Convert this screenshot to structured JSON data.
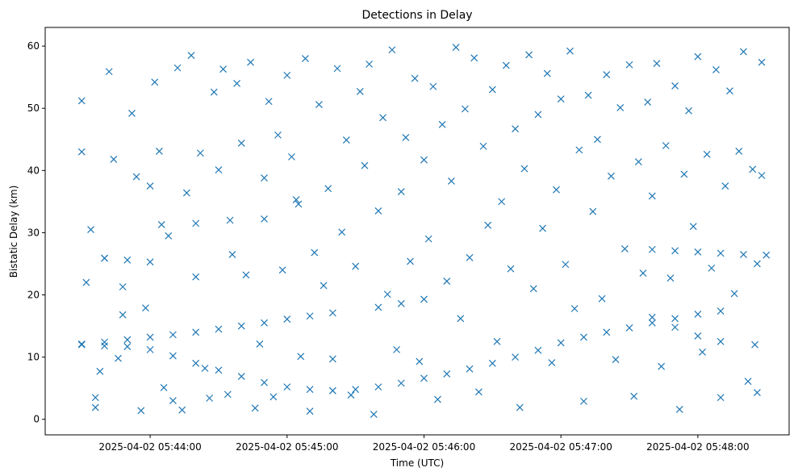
{
  "chart_data": {
    "type": "scatter",
    "title": "Detections in Delay",
    "xlabel": "Time (UTC)",
    "ylabel": "Bistatic Delay (km)",
    "marker": "x",
    "color": "#1f77b4",
    "grid": false,
    "x_ticks": [
      "2025-04-02 05:44:00",
      "2025-04-02 05:45:00",
      "2025-04-02 05:46:00",
      "2025-04-02 05:47:00",
      "2025-04-02 05:48:00"
    ],
    "y_ticks": [
      0,
      10,
      20,
      30,
      40,
      50,
      60
    ],
    "xlim": [
      "2025-04-02 05:43:14",
      "2025-04-02 05:48:40"
    ],
    "ylim": [
      -2.5,
      63
    ],
    "track_points": [
      [
        "05:43:30",
        12.1
      ],
      [
        "05:43:40",
        12.4
      ],
      [
        "05:43:50",
        12.8
      ],
      [
        "05:44:00",
        13.2
      ],
      [
        "05:44:10",
        13.6
      ],
      [
        "05:44:20",
        14.0
      ],
      [
        "05:44:30",
        14.5
      ],
      [
        "05:44:40",
        15.0
      ],
      [
        "05:44:50",
        15.5
      ],
      [
        "05:45:00",
        16.1
      ],
      [
        "05:45:10",
        16.6
      ],
      [
        "05:45:20",
        17.1
      ],
      [
        "05:45:40",
        18.0
      ],
      [
        "05:45:50",
        18.6
      ],
      [
        "05:46:00",
        19.3
      ],
      [
        "05:43:30",
        12.0
      ],
      [
        "05:43:40",
        11.8
      ],
      [
        "05:43:50",
        11.7
      ],
      [
        "05:44:00",
        11.2
      ],
      [
        "05:44:10",
        10.2
      ],
      [
        "05:44:20",
        9.0
      ],
      [
        "05:44:30",
        7.9
      ],
      [
        "05:44:40",
        6.9
      ],
      [
        "05:44:50",
        5.9
      ],
      [
        "05:45:00",
        5.2
      ],
      [
        "05:45:10",
        4.8
      ],
      [
        "05:45:20",
        4.6
      ],
      [
        "05:45:20",
        4.6
      ],
      [
        "05:45:30",
        4.8
      ],
      [
        "05:45:40",
        5.2
      ],
      [
        "05:45:50",
        5.8
      ],
      [
        "05:46:00",
        6.6
      ],
      [
        "05:46:10",
        7.3
      ],
      [
        "05:46:20",
        8.1
      ],
      [
        "05:46:30",
        9.0
      ],
      [
        "05:46:40",
        10.0
      ],
      [
        "05:46:50",
        11.1
      ],
      [
        "05:47:00",
        12.3
      ],
      [
        "05:47:10",
        13.2
      ],
      [
        "05:47:20",
        14.0
      ],
      [
        "05:47:30",
        14.7
      ],
      [
        "05:47:40",
        15.5
      ],
      [
        "05:47:50",
        16.2
      ],
      [
        "05:48:00",
        16.9
      ],
      [
        "05:48:10",
        17.4
      ],
      [
        "05:47:40",
        16.4
      ],
      [
        "05:47:50",
        14.8
      ],
      [
        "05:48:00",
        13.4
      ],
      [
        "05:48:10",
        12.5
      ],
      [
        "05:48:25",
        12.0
      ],
      [
        "05:47:40",
        27.3
      ],
      [
        "05:47:50",
        27.1
      ],
      [
        "05:48:00",
        26.9
      ],
      [
        "05:48:10",
        26.7
      ],
      [
        "05:48:20",
        26.5
      ],
      [
        "05:48:30",
        26.4
      ],
      [
        "05:43:40",
        25.9
      ],
      [
        "05:43:50",
        25.6
      ],
      [
        "05:44:00",
        25.3
      ],
      [
        "05:44:05",
        31.3
      ],
      [
        "05:44:20",
        31.5
      ],
      [
        "05:44:35",
        32.0
      ],
      [
        "05:44:50",
        32.2
      ],
      [
        "05:45:05",
        34.6
      ]
    ],
    "scatter_points": [
      [
        "05:43:30",
        51.2
      ],
      [
        "05:43:30",
        43.0
      ],
      [
        "05:43:32",
        22.0
      ],
      [
        "05:43:34",
        30.5
      ],
      [
        "05:43:36",
        3.5
      ],
      [
        "05:43:36",
        1.9
      ],
      [
        "05:43:38",
        7.7
      ],
      [
        "05:43:40",
        25.9
      ],
      [
        "05:43:42",
        55.9
      ],
      [
        "05:43:44",
        41.8
      ],
      [
        "05:43:46",
        9.8
      ],
      [
        "05:43:48",
        21.3
      ],
      [
        "05:43:48",
        16.8
      ],
      [
        "05:43:52",
        49.2
      ],
      [
        "05:43:54",
        39.0
      ],
      [
        "05:43:56",
        1.4
      ],
      [
        "05:43:58",
        17.9
      ],
      [
        "05:44:00",
        37.5
      ],
      [
        "05:44:02",
        54.2
      ],
      [
        "05:44:04",
        43.1
      ],
      [
        "05:44:06",
        5.1
      ],
      [
        "05:44:08",
        29.5
      ],
      [
        "05:44:10",
        3.0
      ],
      [
        "05:44:12",
        56.5
      ],
      [
        "05:44:14",
        1.5
      ],
      [
        "05:44:16",
        36.4
      ],
      [
        "05:44:18",
        58.5
      ],
      [
        "05:44:20",
        22.9
      ],
      [
        "05:44:22",
        42.8
      ],
      [
        "05:44:24",
        8.2
      ],
      [
        "05:44:26",
        3.4
      ],
      [
        "05:44:28",
        52.6
      ],
      [
        "05:44:30",
        40.1
      ],
      [
        "05:44:32",
        56.3
      ],
      [
        "05:44:34",
        4.0
      ],
      [
        "05:44:36",
        26.5
      ],
      [
        "05:44:38",
        54.0
      ],
      [
        "05:44:40",
        44.4
      ],
      [
        "05:44:42",
        23.2
      ],
      [
        "05:44:44",
        57.4
      ],
      [
        "05:44:46",
        1.8
      ],
      [
        "05:44:48",
        12.1
      ],
      [
        "05:44:50",
        38.8
      ],
      [
        "05:44:52",
        51.1
      ],
      [
        "05:44:54",
        3.6
      ],
      [
        "05:44:56",
        45.7
      ],
      [
        "05:44:58",
        24.0
      ],
      [
        "05:45:00",
        55.3
      ],
      [
        "05:45:02",
        42.2
      ],
      [
        "05:45:04",
        35.3
      ],
      [
        "05:45:06",
        10.1
      ],
      [
        "05:45:08",
        58.0
      ],
      [
        "05:45:10",
        1.3
      ],
      [
        "05:45:12",
        26.8
      ],
      [
        "05:45:14",
        50.6
      ],
      [
        "05:45:16",
        21.5
      ],
      [
        "05:45:18",
        37.1
      ],
      [
        "05:45:20",
        9.7
      ],
      [
        "05:45:22",
        56.4
      ],
      [
        "05:45:24",
        30.1
      ],
      [
        "05:45:26",
        44.9
      ],
      [
        "05:45:28",
        3.9
      ],
      [
        "05:45:30",
        24.6
      ],
      [
        "05:45:32",
        52.7
      ],
      [
        "05:45:34",
        40.8
      ],
      [
        "05:45:36",
        57.1
      ],
      [
        "05:45:38",
        0.8
      ],
      [
        "05:45:40",
        33.5
      ],
      [
        "05:45:42",
        48.5
      ],
      [
        "05:45:44",
        20.1
      ],
      [
        "05:45:46",
        59.4
      ],
      [
        "05:45:48",
        11.2
      ],
      [
        "05:45:50",
        36.6
      ],
      [
        "05:45:52",
        45.3
      ],
      [
        "05:45:54",
        25.4
      ],
      [
        "05:45:56",
        54.8
      ],
      [
        "05:45:58",
        9.3
      ],
      [
        "05:46:00",
        41.7
      ],
      [
        "05:46:02",
        29.0
      ],
      [
        "05:46:04",
        53.5
      ],
      [
        "05:46:06",
        3.2
      ],
      [
        "05:46:08",
        47.4
      ],
      [
        "05:46:10",
        22.2
      ],
      [
        "05:46:12",
        38.3
      ],
      [
        "05:46:14",
        59.8
      ],
      [
        "05:46:16",
        16.2
      ],
      [
        "05:46:18",
        49.9
      ],
      [
        "05:46:20",
        26.0
      ],
      [
        "05:46:22",
        58.1
      ],
      [
        "05:46:24",
        4.4
      ],
      [
        "05:46:26",
        43.9
      ],
      [
        "05:46:28",
        31.2
      ],
      [
        "05:46:30",
        53.0
      ],
      [
        "05:46:32",
        12.5
      ],
      [
        "05:46:34",
        35.0
      ],
      [
        "05:46:36",
        56.9
      ],
      [
        "05:46:38",
        24.2
      ],
      [
        "05:46:40",
        46.7
      ],
      [
        "05:46:42",
        1.9
      ],
      [
        "05:46:44",
        40.3
      ],
      [
        "05:46:46",
        58.6
      ],
      [
        "05:46:48",
        21.0
      ],
      [
        "05:46:50",
        49.0
      ],
      [
        "05:46:52",
        30.7
      ],
      [
        "05:46:54",
        55.6
      ],
      [
        "05:46:56",
        9.1
      ],
      [
        "05:46:58",
        36.9
      ],
      [
        "05:47:00",
        51.5
      ],
      [
        "05:47:02",
        24.9
      ],
      [
        "05:47:04",
        59.2
      ],
      [
        "05:47:06",
        17.8
      ],
      [
        "05:47:08",
        43.3
      ],
      [
        "05:47:10",
        2.9
      ],
      [
        "05:47:12",
        52.1
      ],
      [
        "05:47:14",
        33.4
      ],
      [
        "05:47:16",
        45.0
      ],
      [
        "05:47:18",
        19.4
      ],
      [
        "05:47:20",
        55.4
      ],
      [
        "05:47:22",
        39.1
      ],
      [
        "05:47:24",
        9.6
      ],
      [
        "05:47:26",
        50.1
      ],
      [
        "05:47:28",
        27.4
      ],
      [
        "05:47:30",
        57.0
      ],
      [
        "05:47:32",
        3.7
      ],
      [
        "05:47:34",
        41.4
      ],
      [
        "05:47:36",
        23.5
      ],
      [
        "05:47:38",
        51.0
      ],
      [
        "05:47:40",
        35.9
      ],
      [
        "05:47:42",
        57.2
      ],
      [
        "05:47:44",
        8.5
      ],
      [
        "05:47:46",
        44.0
      ],
      [
        "05:47:48",
        22.7
      ],
      [
        "05:47:50",
        53.6
      ],
      [
        "05:47:52",
        1.6
      ],
      [
        "05:47:54",
        39.4
      ],
      [
        "05:47:56",
        49.6
      ],
      [
        "05:47:58",
        31.0
      ],
      [
        "05:48:00",
        58.3
      ],
      [
        "05:48:02",
        10.8
      ],
      [
        "05:48:04",
        42.6
      ],
      [
        "05:48:06",
        24.3
      ],
      [
        "05:48:08",
        56.2
      ],
      [
        "05:48:10",
        3.5
      ],
      [
        "05:48:12",
        37.5
      ],
      [
        "05:48:14",
        52.8
      ],
      [
        "05:48:16",
        20.2
      ],
      [
        "05:48:18",
        43.1
      ],
      [
        "05:48:20",
        59.1
      ],
      [
        "05:48:22",
        6.1
      ],
      [
        "05:48:24",
        40.2
      ],
      [
        "05:48:26",
        25.0
      ],
      [
        "05:48:28",
        57.4
      ],
      [
        "05:48:28",
        39.2
      ],
      [
        "05:48:26",
        4.3
      ]
    ]
  }
}
